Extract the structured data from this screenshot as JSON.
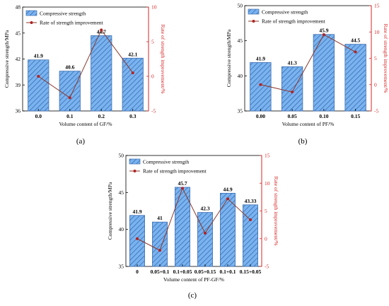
{
  "panels": [
    "(a)",
    "(b)",
    "(c)"
  ],
  "colors": {
    "bar_fill": "#79b3f0",
    "bar_stroke": "#3f6fb0",
    "hatch": "#3564a8",
    "line": "#8a3a2e",
    "marker": "#b22222",
    "right_axis": "#d62728",
    "axis": "#000000"
  },
  "chart_data": [
    {
      "type": "bar",
      "panel": "(a)",
      "categories": [
        "0.0",
        "0.1",
        "0.2",
        "0.3"
      ],
      "xlabel": "Volume content of GF/%",
      "ylabel": "Compressive strength/MPa",
      "ylabel_right": "Rate of strength improvement/%",
      "ylim": [
        36,
        48
      ],
      "yticks": [
        36,
        39,
        42,
        45,
        48
      ],
      "ylim_right": [
        -5,
        10
      ],
      "yticks_right": [
        -5,
        0,
        5,
        10
      ],
      "series": [
        {
          "name": "Compressive strength",
          "type": "bar",
          "axis": "left",
          "values": [
            41.9,
            40.6,
            44.7,
            42.1
          ],
          "labels": [
            "41.9",
            "40.6",
            "44.7",
            "42.1"
          ]
        },
        {
          "name": "Rate of strength improvement",
          "type": "line",
          "axis": "right",
          "values": [
            0,
            -3.1,
            6.7,
            0.5
          ]
        }
      ],
      "legend": "top-left"
    },
    {
      "type": "bar",
      "panel": "(b)",
      "categories": [
        "0.00",
        "0.05",
        "0.10",
        "0.15"
      ],
      "xlabel": "Volume content of PF/%",
      "ylabel": "Compressive strength/MPa",
      "ylabel_right": "Rate of strength improvement/%",
      "ylim": [
        35,
        50
      ],
      "yticks": [
        35,
        40,
        45,
        50
      ],
      "ylim_right": [
        -5,
        15
      ],
      "yticks_right": [
        -5,
        0,
        5,
        10,
        15
      ],
      "series": [
        {
          "name": "Compressive strength",
          "type": "bar",
          "axis": "left",
          "values": [
            41.9,
            41.3,
            45.9,
            44.5
          ],
          "labels": [
            "41.9",
            "41.3",
            "45.9",
            "44.5"
          ]
        },
        {
          "name": "Rate of strength improvement",
          "type": "line",
          "axis": "right",
          "values": [
            0,
            -1.4,
            9.5,
            6.2
          ]
        }
      ],
      "legend": "top-left"
    },
    {
      "type": "bar",
      "panel": "(c)",
      "categories": [
        "0",
        "0.05+0.1",
        "0.1+0.05",
        "0.05+0.15",
        "0.1+0.1",
        "0.15+0.05"
      ],
      "xlabel": "Volume content of PF-GF/%",
      "ylabel": "Compressive strength/MPa",
      "ylabel_right": "Rate of strength improvement/%",
      "ylim": [
        35,
        50
      ],
      "yticks": [
        35,
        40,
        45,
        50
      ],
      "ylim_right": [
        -5,
        15
      ],
      "yticks_right": [
        -5,
        0,
        5,
        10,
        15
      ],
      "series": [
        {
          "name": "Compressive strength",
          "type": "bar",
          "axis": "left",
          "values": [
            41.9,
            41,
            45.7,
            42.3,
            44.9,
            43.33
          ],
          "labels": [
            "41.9",
            "41",
            "45.7",
            "42.3",
            "44.9",
            "43.33"
          ]
        },
        {
          "name": "Rate of strength improvement",
          "type": "line",
          "axis": "right",
          "values": [
            0,
            -2.1,
            9.1,
            1.0,
            7.2,
            3.4
          ]
        }
      ],
      "legend": "top-left"
    }
  ]
}
